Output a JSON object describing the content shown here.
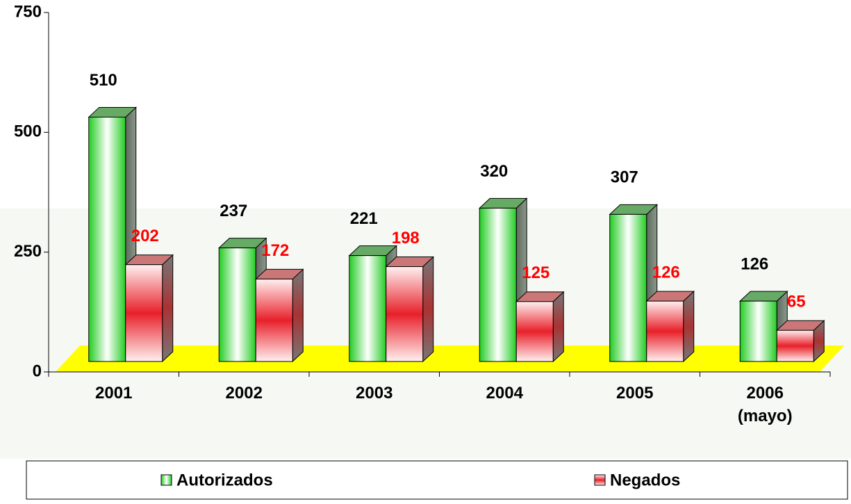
{
  "chart_data": {
    "type": "bar3d",
    "categories": [
      "2001",
      "2002",
      "2003",
      "2004",
      "2005",
      "2006\n(mayo)"
    ],
    "series": [
      {
        "name": "Autorizados",
        "color": "#33dd33",
        "label_color": "#000000",
        "values": [
          510,
          237,
          221,
          320,
          307,
          126
        ]
      },
      {
        "name": "Negados",
        "color": "#e8202a",
        "label_color": "#ff0000",
        "values": [
          202,
          172,
          198,
          125,
          126,
          65
        ]
      }
    ],
    "ylim": [
      0,
      750
    ],
    "yticks": [
      0,
      250,
      500,
      750
    ],
    "floor_color": "#ffff00",
    "legend": "bottom"
  }
}
